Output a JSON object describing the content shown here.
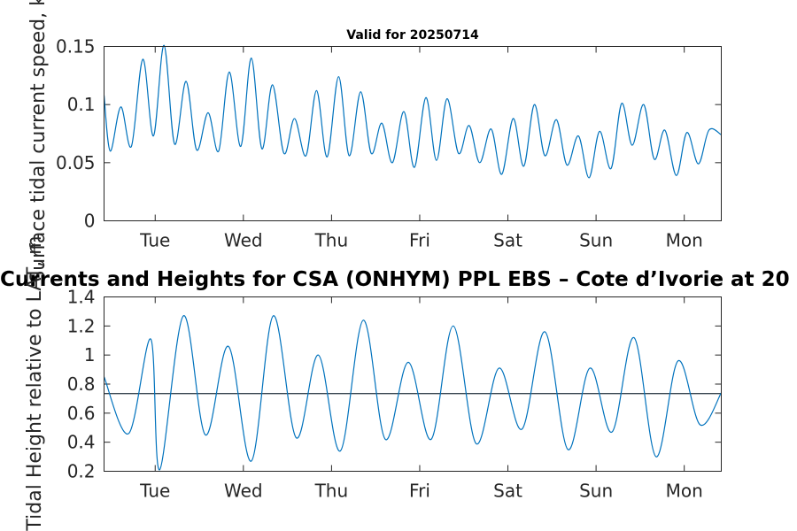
{
  "chart_data": [
    {
      "type": "line",
      "title": "Valid for 20250714",
      "ylabel": "Surface tidal current speed, kn",
      "ylim": [
        0,
        0.15
      ],
      "yticks": [
        0,
        0.05,
        0.1,
        0.15
      ],
      "ytick_labels": [
        "0",
        "0.05",
        "0.1",
        "0.15"
      ],
      "xlim": [
        -0.58,
        6.42
      ],
      "xticks": [
        0,
        1,
        2,
        3,
        4,
        5,
        6
      ],
      "xtick_labels": [
        "Tue",
        "Wed",
        "Thu",
        "Fri",
        "Sat",
        "Sun",
        "Mon"
      ],
      "series": [
        {
          "color": "#0072BD",
          "x": [
            -0.58,
            -0.51,
            -0.39,
            -0.27,
            -0.14,
            -0.02,
            0.1,
            0.22,
            0.35,
            0.47,
            0.6,
            0.72,
            0.84,
            0.97,
            1.09,
            1.21,
            1.33,
            1.46,
            1.58,
            1.71,
            1.83,
            1.95,
            2.08,
            2.2,
            2.33,
            2.45,
            2.57,
            2.69,
            2.82,
            2.94,
            3.07,
            3.19,
            3.31,
            3.44,
            3.56,
            3.68,
            3.81,
            3.93,
            4.06,
            4.18,
            4.3,
            4.42,
            4.55,
            4.67,
            4.8,
            4.92,
            5.04,
            5.17,
            5.29,
            5.41,
            5.54,
            5.66,
            5.78,
            5.91,
            6.03,
            6.16,
            6.28,
            6.42
          ],
          "y": [
            0.108,
            0.06,
            0.098,
            0.064,
            0.139,
            0.073,
            0.151,
            0.066,
            0.12,
            0.061,
            0.093,
            0.06,
            0.128,
            0.064,
            0.14,
            0.062,
            0.117,
            0.058,
            0.088,
            0.056,
            0.112,
            0.055,
            0.124,
            0.056,
            0.111,
            0.058,
            0.084,
            0.05,
            0.094,
            0.046,
            0.106,
            0.052,
            0.105,
            0.058,
            0.082,
            0.05,
            0.079,
            0.04,
            0.088,
            0.047,
            0.1,
            0.056,
            0.087,
            0.048,
            0.073,
            0.037,
            0.077,
            0.045,
            0.101,
            0.065,
            0.1,
            0.053,
            0.078,
            0.039,
            0.076,
            0.049,
            0.078,
            0.074
          ]
        }
      ]
    },
    {
      "type": "line",
      "title": "Currents and Heights for CSA (ONHYM) PPL EBS  – Cote d’Ivorie at 20",
      "ylabel": "Tidal Height relative to LAT, m",
      "ylim": [
        0.2,
        1.4
      ],
      "yticks": [
        0.2,
        0.4,
        0.6,
        0.8,
        1,
        1.2,
        1.4
      ],
      "ytick_labels": [
        "0.2",
        "0.4",
        "0.6",
        "0.8",
        "1",
        "1.2",
        "1.4"
      ],
      "xlim": [
        -0.58,
        6.42
      ],
      "xticks": [
        0,
        1,
        2,
        3,
        4,
        5,
        6
      ],
      "xtick_labels": [
        "Tue",
        "Wed",
        "Thu",
        "Fri",
        "Sat",
        "Sun",
        "Mon"
      ],
      "reference_line": 0.735,
      "series": [
        {
          "color": "#0072BD",
          "x": [
            -0.58,
            -0.3,
            -0.05,
            0.05,
            0.32,
            0.57,
            0.83,
            1.09,
            1.34,
            1.6,
            1.85,
            2.1,
            2.36,
            2.61,
            2.87,
            3.13,
            3.38,
            3.64,
            3.9,
            4.16,
            4.42,
            4.68,
            4.93,
            5.18,
            5.43,
            5.68,
            5.93,
            6.18,
            6.42
          ],
          "y": [
            0.85,
            0.46,
            1.11,
            0.21,
            1.27,
            0.45,
            1.06,
            0.27,
            1.27,
            0.43,
            1.0,
            0.34,
            1.24,
            0.42,
            0.95,
            0.42,
            1.2,
            0.39,
            0.91,
            0.49,
            1.16,
            0.35,
            0.91,
            0.47,
            1.12,
            0.3,
            0.96,
            0.52,
            0.74
          ]
        }
      ]
    }
  ]
}
